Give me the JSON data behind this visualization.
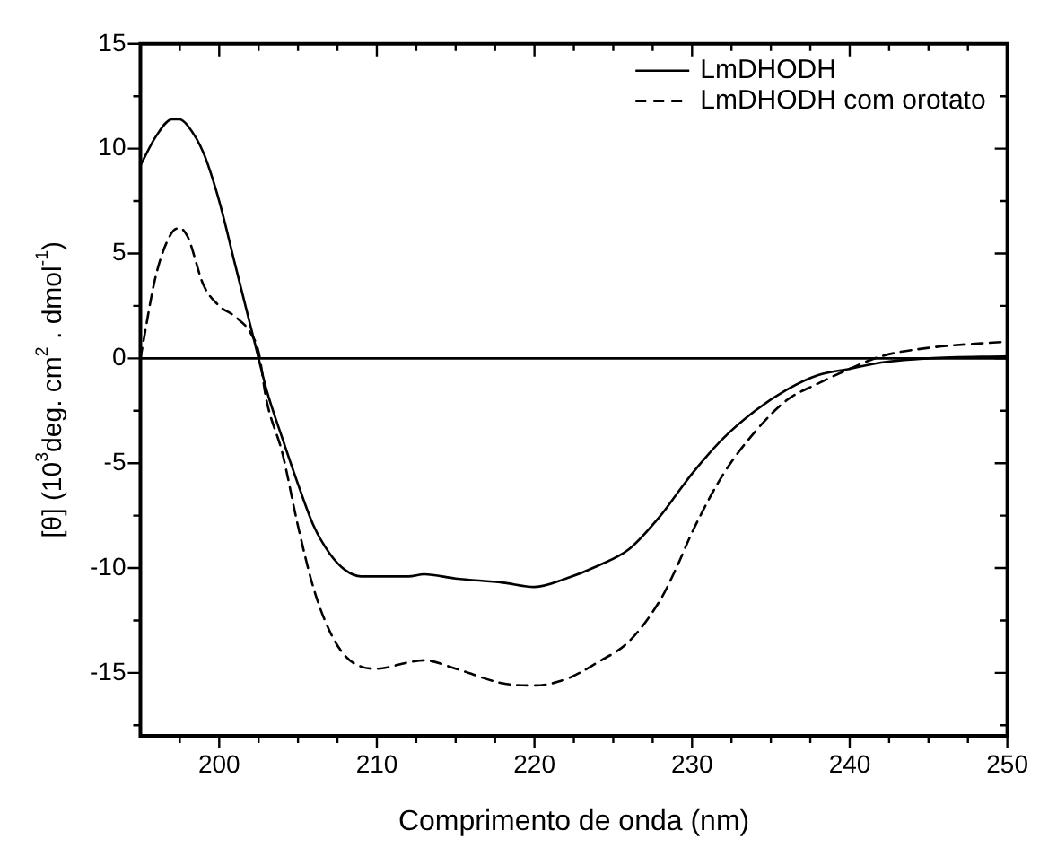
{
  "chart_data": {
    "type": "line",
    "xlabel": "Comprimento de onda (nm)",
    "ylabel": "[θ] (10$^{3}$deg. cm$^{2}$ . dmol$^{-1}$)",
    "xlim": [
      195,
      250
    ],
    "ylim": [
      -18,
      15
    ],
    "xticks": [
      {
        "value": 197.5,
        "label": null
      },
      200,
      {
        "value": 202.5,
        "label": null
      },
      {
        "value": 205,
        "label": null
      },
      {
        "value": 207.5,
        "label": null
      },
      210,
      {
        "value": 212.5,
        "label": null
      },
      {
        "value": 215,
        "label": null
      },
      {
        "value": 217.5,
        "label": null
      },
      220,
      {
        "value": 222.5,
        "label": null
      },
      {
        "value": 225,
        "label": null
      },
      {
        "value": 227.5,
        "label": null
      },
      230,
      {
        "value": 232.5,
        "label": null
      },
      {
        "value": 235,
        "label": null
      },
      {
        "value": 237.5,
        "label": null
      },
      240,
      {
        "value": 242.5,
        "label": null
      },
      {
        "value": 245,
        "label": null
      },
      {
        "value": 247.5,
        "label": null
      },
      250
    ],
    "yticks": [
      {
        "value": -17.5,
        "label": null
      },
      -15,
      {
        "value": -12.5,
        "label": null
      },
      -10,
      {
        "value": -7.5,
        "label": null
      },
      -5,
      {
        "value": -2.5,
        "label": null
      },
      0,
      {
        "value": 2.5,
        "label": null
      },
      5,
      {
        "value": 7.5,
        "label": null
      },
      10,
      {
        "value": 12.5,
        "label": null
      },
      15
    ],
    "x": [
      195,
      196,
      197,
      197.5,
      198,
      199,
      200,
      201,
      202,
      202.5,
      203,
      204,
      205,
      206,
      207,
      208,
      209,
      210,
      212,
      213,
      215,
      218,
      220,
      222,
      224,
      226,
      228,
      229,
      230,
      232,
      234,
      236,
      238,
      240,
      242,
      245,
      250
    ],
    "series": [
      {
        "name": "LmDHODH",
        "color": "#000000",
        "line_style": "solid",
        "values": [
          9.2,
          10.6,
          11.4,
          11.4,
          11.1,
          9.8,
          7.5,
          4.5,
          1.5,
          0,
          -1.5,
          -3.8,
          -6,
          -8,
          -9.3,
          -10.1,
          -10.4,
          -10.4,
          -10.4,
          -10.3,
          -10.5,
          -10.7,
          -10.9,
          -10.5,
          -9.9,
          -9.1,
          -7.5,
          -6.5,
          -5.5,
          -3.8,
          -2.5,
          -1.5,
          -0.8,
          -0.5,
          -0.2,
          0,
          0.1
        ]
      },
      {
        "name": "LmDHODH com orotato",
        "color": "#000000",
        "line_style": "dashed",
        "values": [
          0,
          4,
          6,
          6.2,
          5.8,
          3.5,
          2.5,
          2,
          1.2,
          0.3,
          -2,
          -4.5,
          -8,
          -11,
          -13,
          -14.2,
          -14.7,
          -14.8,
          -14.5,
          -14.4,
          -14.8,
          -15.5,
          -15.6,
          -15.3,
          -14.5,
          -13.5,
          -11.5,
          -10,
          -8.3,
          -5.5,
          -3.5,
          -2,
          -1.2,
          -0.5,
          0.1,
          0.5,
          0.8
        ]
      }
    ],
    "ref_lines": [
      {
        "axis": "y",
        "value": 0,
        "color": "#000000"
      }
    ],
    "legend": "top right",
    "grid": false,
    "marker": "none"
  }
}
